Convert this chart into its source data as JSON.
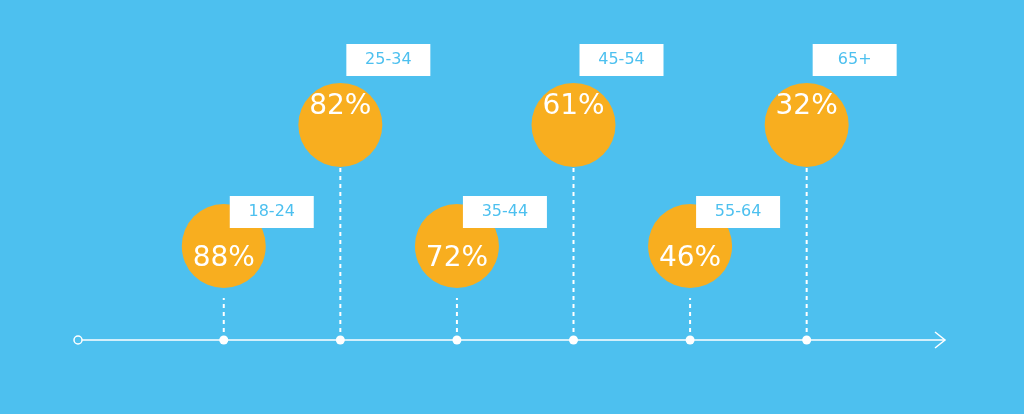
{
  "chart_data": {
    "type": "other",
    "categories": [
      "18-24",
      "25-34",
      "35-44",
      "45-54",
      "55-64",
      "65+"
    ],
    "values": [
      88,
      82,
      72,
      61,
      46,
      32
    ],
    "value_labels": [
      "88%",
      "82%",
      "72%",
      "61%",
      "46%",
      "32%"
    ],
    "color": "#f8ae1f"
  }
}
